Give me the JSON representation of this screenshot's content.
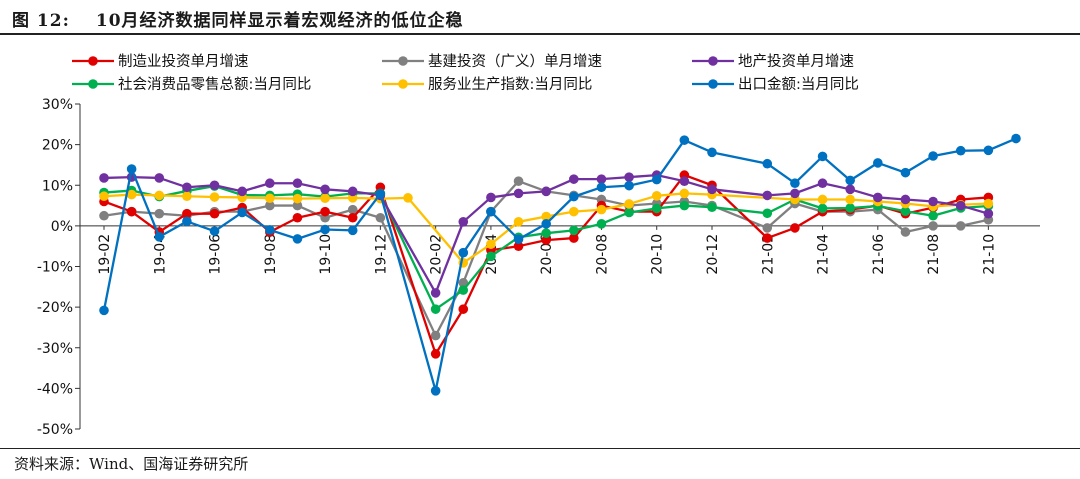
{
  "header": {
    "figure_label": "图 12:",
    "title": "10月经济数据同样显示着宏观经济的低位企稳"
  },
  "source": "资料来源：Wind、国海证券研究所",
  "chart_data": {
    "type": "line",
    "title": "10月经济数据同样显示着宏观经济的低位企稳",
    "ylabel": "",
    "xlabel": "",
    "ylim": [
      -50,
      30
    ],
    "yticks": [
      -50,
      -40,
      -30,
      -20,
      -10,
      0,
      10,
      20,
      30
    ],
    "ytick_labels": [
      "-50%",
      "-40%",
      "-30%",
      "-20%",
      "-10%",
      "0%",
      "10%",
      "20%",
      "30%"
    ],
    "x": [
      "19-02",
      "19-03",
      "19-04",
      "19-05",
      "19-06",
      "19-07",
      "19-08",
      "19-09",
      "19-10",
      "19-11",
      "19-12",
      "20-01",
      "20-02",
      "20-03",
      "20-04",
      "20-05",
      "20-06",
      "20-07",
      "20-08",
      "20-09",
      "20-10",
      "20-11",
      "20-12",
      "21-01",
      "21-02",
      "21-03",
      "21-04",
      "21-05",
      "21-06",
      "21-07",
      "21-08",
      "21-09",
      "21-10",
      "21-11"
    ],
    "xtick_labels": [
      "19-02",
      "19-04",
      "19-06",
      "19-08",
      "19-10",
      "19-12",
      "20-02",
      "20-04",
      "20-06",
      "20-08",
      "20-10",
      "20-12",
      "21-02",
      "21-04",
      "21-06",
      "21-08",
      "21-10"
    ],
    "legend_position": "top",
    "series": [
      {
        "name": "制造业投资单月增速",
        "color": "#E00000",
        "values": [
          6,
          3.5,
          -1.5,
          3,
          3,
          4.5,
          -1.5,
          2,
          3.5,
          2,
          9.5,
          null,
          -31.5,
          -20.5,
          -6,
          -5,
          -3.5,
          -3,
          5,
          3.5,
          3.5,
          12.5,
          10,
          null,
          -3,
          -0.5,
          3.5,
          4,
          5,
          3,
          4.5,
          6.5,
          7,
          null
        ]
      },
      {
        "name": "基建投资（广义）单月增速",
        "color": "#808080",
        "values": [
          2.5,
          3.5,
          3,
          2.5,
          3.5,
          3.5,
          5,
          5,
          2,
          4,
          2,
          null,
          -27,
          -14,
          3.5,
          11,
          8.5,
          7.5,
          6.5,
          5,
          5.5,
          6,
          5,
          null,
          -0.5,
          5.5,
          3.5,
          3.5,
          4,
          -1.5,
          0,
          0,
          1.5,
          null
        ]
      },
      {
        "name": "地产投资单月增速",
        "color": "#7030A0",
        "values": [
          11.8,
          12,
          11.8,
          9.5,
          10,
          8.5,
          10.5,
          10.5,
          9,
          8.5,
          7.5,
          null,
          -16.5,
          1,
          7,
          8,
          8.5,
          11.5,
          11.5,
          12,
          12.5,
          11,
          9,
          null,
          7.5,
          8,
          10.5,
          9,
          7,
          6.5,
          6,
          5,
          3,
          null
        ]
      },
      {
        "name": "社会消费品零售总额:当月同比",
        "color": "#00B050",
        "values": [
          8.2,
          8.7,
          7.2,
          8.6,
          9.8,
          7.6,
          7.5,
          7.8,
          7.2,
          8,
          8,
          null,
          -20.5,
          -15.8,
          -7.5,
          -2.8,
          -1.8,
          -1.1,
          0.5,
          3.3,
          4.3,
          5,
          4.6,
          null,
          3.1,
          6.5,
          4.3,
          4.4,
          4.9,
          3.6,
          2.5,
          4.4,
          4.9,
          null
        ]
      },
      {
        "name": "服务业生产指数:当月同比",
        "color": "#FFC000",
        "values": [
          7.3,
          7.7,
          7.5,
          7.3,
          7.1,
          7,
          6.8,
          6.7,
          6.8,
          6.9,
          6.7,
          6.9,
          null,
          -9.1,
          -4.5,
          1,
          2.3,
          3.5,
          4,
          5.4,
          7.4,
          8,
          7.7,
          null,
          null,
          6.5,
          6.5,
          6.5,
          6,
          5.5,
          4.8,
          5.2,
          5.5,
          null
        ]
      },
      {
        "name": "出口金额:当月同比",
        "color": "#0070C0",
        "values": [
          -20.8,
          14,
          -2.7,
          1.1,
          -1.3,
          3.3,
          -1,
          -3.2,
          -0.9,
          -1.1,
          7.9,
          null,
          -40.6,
          -6.6,
          3.5,
          -3.3,
          0.5,
          7.2,
          9.5,
          9.9,
          11.4,
          21.1,
          18.1,
          null,
          15.3,
          10.5,
          17.1,
          11.2,
          15.5,
          13.1,
          17.2,
          18.5,
          18.6,
          21.5
        ]
      }
    ]
  }
}
